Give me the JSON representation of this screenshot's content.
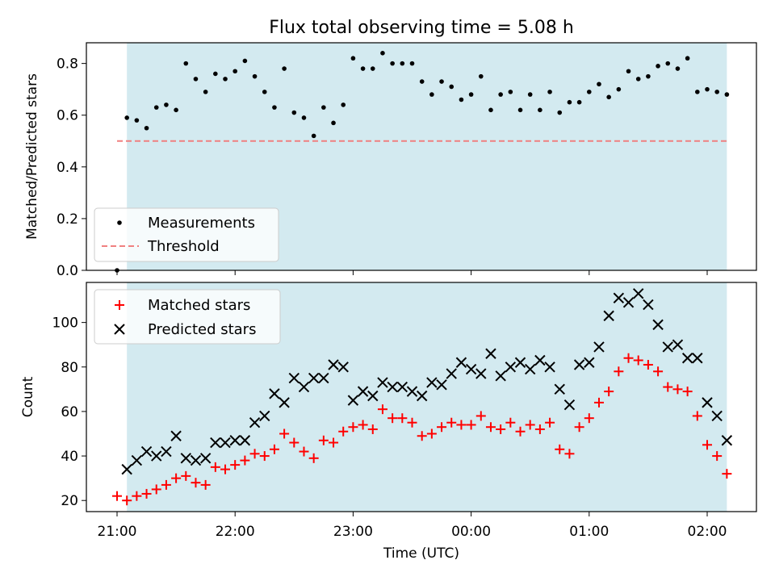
{
  "chart_data": [
    {
      "type": "scatter",
      "title": "Flux total observing time = 5.08 h",
      "xlabel": "",
      "ylabel": "Matched/Predicted stars",
      "ylim": [
        0,
        0.88
      ],
      "yticks": [
        0.0,
        0.2,
        0.4,
        0.6,
        0.8
      ],
      "ytick_labels": [
        "0.0",
        "0.2",
        "0.4",
        "0.6",
        "0.8"
      ],
      "observing_window": [
        "21:05",
        "02:10"
      ],
      "legend_position": "lower-left",
      "series": [
        {
          "name": "Measurements",
          "marker": "dot",
          "color": "#000000",
          "x": [
            "21:00",
            "21:05",
            "21:10",
            "21:15",
            "21:20",
            "21:25",
            "21:30",
            "21:35",
            "21:40",
            "21:45",
            "21:50",
            "21:55",
            "22:00",
            "22:05",
            "22:10",
            "22:15",
            "22:20",
            "22:25",
            "22:30",
            "22:35",
            "22:40",
            "22:45",
            "22:50",
            "22:55",
            "23:00",
            "23:05",
            "23:10",
            "23:15",
            "23:20",
            "23:25",
            "23:30",
            "23:35",
            "23:40",
            "23:45",
            "23:50",
            "23:55",
            "00:00",
            "00:05",
            "00:10",
            "00:15",
            "00:20",
            "00:25",
            "00:30",
            "00:35",
            "00:40",
            "00:45",
            "00:50",
            "00:55",
            "01:00",
            "01:05",
            "01:10",
            "01:15",
            "01:20",
            "01:25",
            "01:30",
            "01:35",
            "01:40",
            "01:45",
            "01:50",
            "01:55",
            "02:00",
            "02:05",
            "02:10"
          ],
          "y": [
            0.0,
            0.59,
            0.58,
            0.55,
            0.63,
            0.64,
            0.62,
            0.8,
            0.74,
            0.69,
            0.76,
            0.74,
            0.77,
            0.81,
            0.75,
            0.69,
            0.63,
            0.78,
            0.61,
            0.59,
            0.52,
            0.63,
            0.57,
            0.64,
            0.82,
            0.78,
            0.78,
            0.84,
            0.8,
            0.8,
            0.8,
            0.73,
            0.68,
            0.73,
            0.71,
            0.66,
            0.68,
            0.75,
            0.62,
            0.68,
            0.69,
            0.62,
            0.68,
            0.62,
            0.69,
            0.61,
            0.65,
            0.65,
            0.69,
            0.72,
            0.67,
            0.7,
            0.77,
            0.74,
            0.75,
            0.79,
            0.8,
            0.78,
            0.82,
            0.69,
            0.7,
            0.69,
            0.68
          ]
        },
        {
          "name": "Threshold",
          "marker": "dashed-line",
          "color": "#f08080",
          "x": [
            "21:00",
            "02:10"
          ],
          "y": [
            0.5,
            0.5
          ]
        }
      ]
    },
    {
      "type": "scatter",
      "xlabel": "Time (UTC)",
      "ylabel": "Count",
      "ylim": [
        15,
        118
      ],
      "yticks": [
        20,
        40,
        60,
        80,
        100
      ],
      "xticks": [
        "21:00",
        "22:00",
        "23:00",
        "00:00",
        "01:00",
        "02:00"
      ],
      "observing_window": [
        "21:05",
        "02:10"
      ],
      "legend_position": "upper-left",
      "series": [
        {
          "name": "Matched stars",
          "marker": "plus",
          "color": "#ff0000",
          "x": [
            "21:00",
            "21:05",
            "21:10",
            "21:15",
            "21:20",
            "21:25",
            "21:30",
            "21:35",
            "21:40",
            "21:45",
            "21:50",
            "21:55",
            "22:00",
            "22:05",
            "22:10",
            "22:15",
            "22:20",
            "22:25",
            "22:30",
            "22:35",
            "22:40",
            "22:45",
            "22:50",
            "22:55",
            "23:00",
            "23:05",
            "23:10",
            "23:15",
            "23:20",
            "23:25",
            "23:30",
            "23:35",
            "23:40",
            "23:45",
            "23:50",
            "23:55",
            "00:00",
            "00:05",
            "00:10",
            "00:15",
            "00:20",
            "00:25",
            "00:30",
            "00:35",
            "00:40",
            "00:45",
            "00:50",
            "00:55",
            "01:00",
            "01:05",
            "01:10",
            "01:15",
            "01:20",
            "01:25",
            "01:30",
            "01:35",
            "01:40",
            "01:45",
            "01:50",
            "01:55",
            "02:00",
            "02:05",
            "02:10"
          ],
          "y": [
            22,
            20,
            22,
            23,
            25,
            27,
            30,
            31,
            28,
            27,
            35,
            34,
            36,
            38,
            41,
            40,
            43,
            50,
            46,
            42,
            39,
            47,
            46,
            51,
            53,
            54,
            52,
            61,
            57,
            57,
            55,
            49,
            50,
            53,
            55,
            54,
            54,
            58,
            53,
            52,
            55,
            51,
            54,
            52,
            55,
            43,
            41,
            53,
            57,
            64,
            69,
            78,
            84,
            83,
            81,
            78,
            71,
            70,
            69,
            58,
            45,
            40,
            32
          ]
        },
        {
          "name": "Predicted stars",
          "marker": "x",
          "color": "#000000",
          "x": [
            "21:05",
            "21:10",
            "21:15",
            "21:20",
            "21:25",
            "21:30",
            "21:35",
            "21:40",
            "21:45",
            "21:50",
            "21:55",
            "22:00",
            "22:05",
            "22:10",
            "22:15",
            "22:20",
            "22:25",
            "22:30",
            "22:35",
            "22:40",
            "22:45",
            "22:50",
            "22:55",
            "23:00",
            "23:05",
            "23:10",
            "23:15",
            "23:20",
            "23:25",
            "23:30",
            "23:35",
            "23:40",
            "23:45",
            "23:50",
            "23:55",
            "00:00",
            "00:05",
            "00:10",
            "00:15",
            "00:20",
            "00:25",
            "00:30",
            "00:35",
            "00:40",
            "00:45",
            "00:50",
            "00:55",
            "01:00",
            "01:05",
            "01:10",
            "01:15",
            "01:20",
            "01:25",
            "01:30",
            "01:35",
            "01:40",
            "01:45",
            "01:50",
            "01:55",
            "02:00",
            "02:05",
            "02:10"
          ],
          "y": [
            34,
            38,
            42,
            40,
            42,
            49,
            39,
            38,
            39,
            46,
            46,
            47,
            47,
            55,
            58,
            68,
            64,
            75,
            71,
            75,
            75,
            81,
            80,
            65,
            69,
            67,
            73,
            71,
            71,
            69,
            67,
            73,
            72,
            77,
            82,
            79,
            77,
            86,
            76,
            80,
            82,
            79,
            83,
            80,
            70,
            63,
            81,
            82,
            89,
            103,
            111,
            109,
            113,
            108,
            99,
            89,
            90,
            84,
            84,
            64,
            58,
            47
          ]
        }
      ]
    }
  ],
  "colors": {
    "observing_band": "#d3eaf0",
    "threshold": "#f08080",
    "matched": "#ff0000",
    "predicted": "#000000"
  }
}
